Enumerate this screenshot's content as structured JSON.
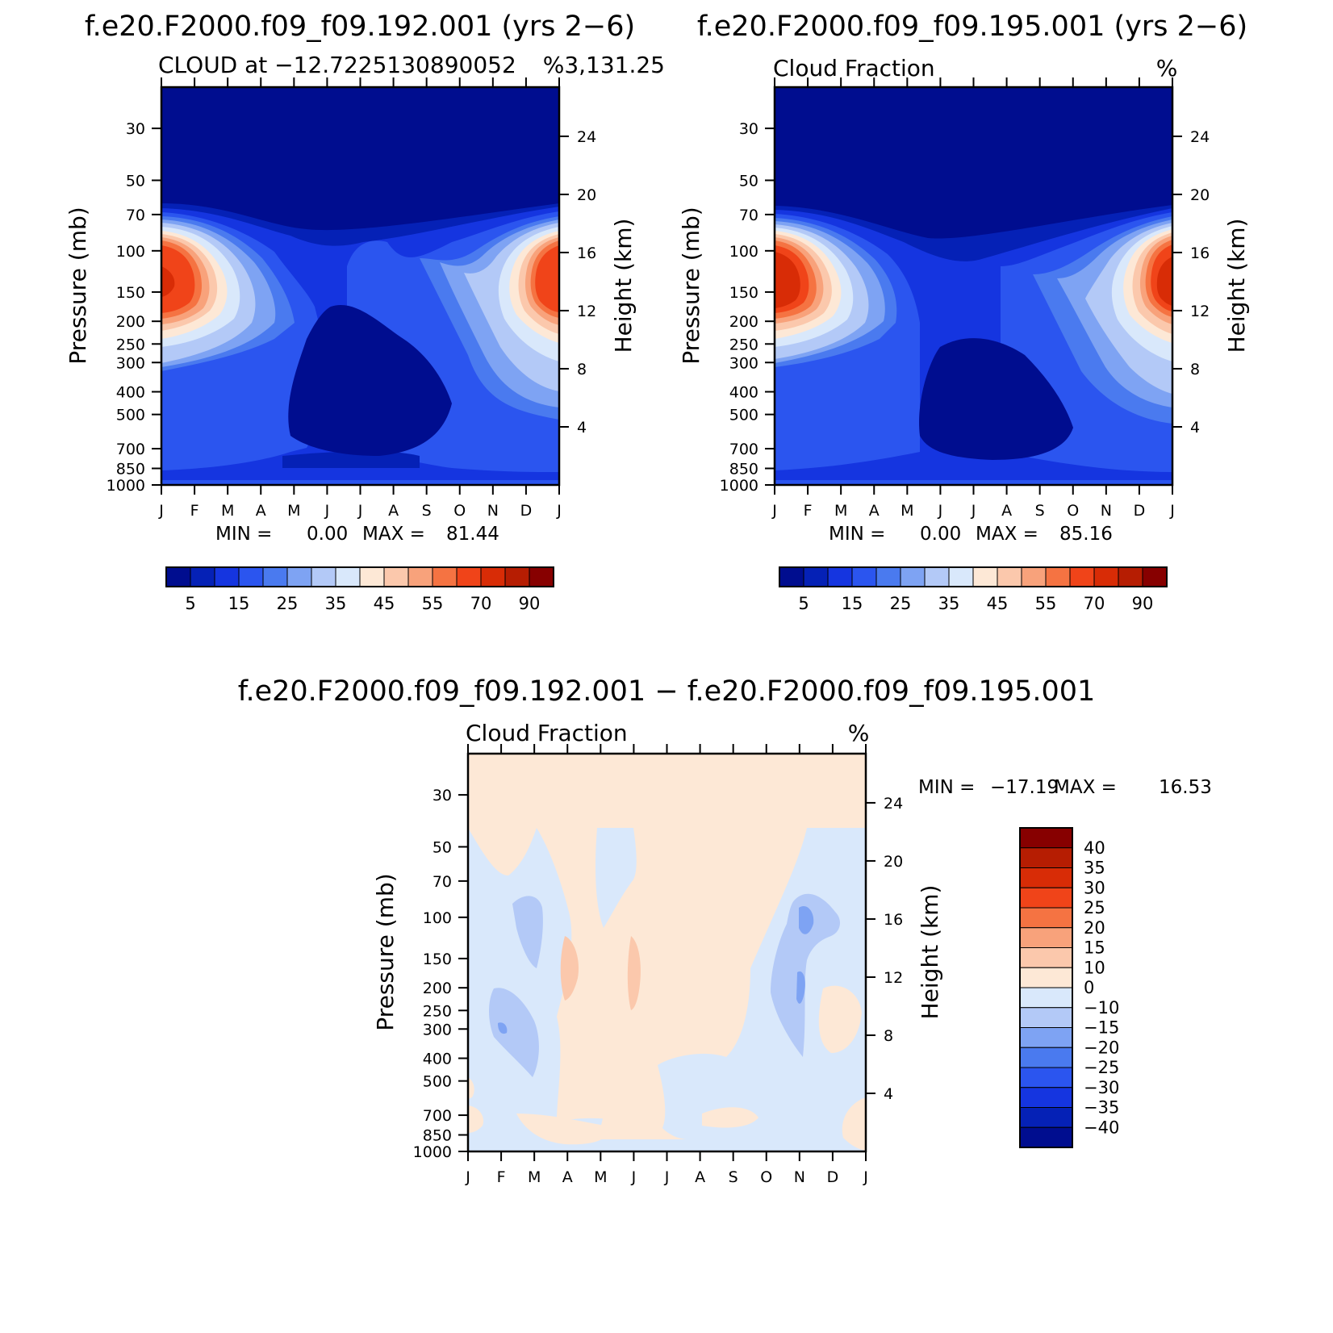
{
  "figure": {
    "background": "#ffffff"
  },
  "chart_data": [
    {
      "id": "p1",
      "type": "heatmap",
      "title": "f.e20.F2000.f09_f09.192.001 (yrs 2−6)",
      "subtitle_left": "CLOUD at −12.7225130890052",
      "subtitle_right": "%",
      "subtitle_tail": "3,131.25",
      "ylabel": "Pressure (mb)",
      "ylabel_right": "Height (km)",
      "x_ticks": [
        "J",
        "F",
        "M",
        "A",
        "M",
        "J",
        "J",
        "A",
        "S",
        "O",
        "N",
        "D",
        "J"
      ],
      "y_ticks": [
        "30",
        "50",
        "70",
        "100",
        "150",
        "200",
        "250",
        "300",
        "400",
        "500",
        "700",
        "850",
        "1000"
      ],
      "y_ticks_right": [
        "24",
        "20",
        "16",
        "12",
        "8",
        "4"
      ],
      "stats": {
        "min_label": "MIN =",
        "min_value": "0.00",
        "max_label": "MAX =",
        "max_value": "81.44"
      },
      "units": "%",
      "colorbar_labels": [
        "5",
        "15",
        "25",
        "35",
        "45",
        "55",
        "70",
        "90"
      ],
      "peak_value": 81.44,
      "minimum_value": 0.0
    },
    {
      "id": "p2",
      "type": "heatmap",
      "title": "f.e20.F2000.f09_f09.195.001 (yrs 2−6)",
      "subtitle_left": "Cloud Fraction",
      "subtitle_right": "%",
      "ylabel": "Pressure (mb)",
      "ylabel_right": "Height (km)",
      "x_ticks": [
        "J",
        "F",
        "M",
        "A",
        "M",
        "J",
        "J",
        "A",
        "S",
        "O",
        "N",
        "D",
        "J"
      ],
      "y_ticks": [
        "30",
        "50",
        "70",
        "100",
        "150",
        "200",
        "250",
        "300",
        "400",
        "500",
        "700",
        "850",
        "1000"
      ],
      "y_ticks_right": [
        "24",
        "20",
        "16",
        "12",
        "8",
        "4"
      ],
      "stats": {
        "min_label": "MIN =",
        "min_value": "0.00",
        "max_label": "MAX =",
        "max_value": "85.16"
      },
      "units": "%",
      "colorbar_labels": [
        "5",
        "15",
        "25",
        "35",
        "45",
        "55",
        "70",
        "90"
      ],
      "peak_value": 85.16,
      "minimum_value": 0.0
    },
    {
      "id": "p3",
      "type": "heatmap",
      "title": "f.e20.F2000.f09_f09.192.001 − f.e20.F2000.f09_f09.195.001",
      "subtitle_left": "Cloud Fraction",
      "subtitle_right": "%",
      "ylabel": "Pressure (mb)",
      "ylabel_right": "Height (km)",
      "x_ticks": [
        "J",
        "F",
        "M",
        "A",
        "M",
        "J",
        "J",
        "A",
        "S",
        "O",
        "N",
        "D",
        "J"
      ],
      "y_ticks": [
        "30",
        "50",
        "70",
        "100",
        "150",
        "200",
        "250",
        "300",
        "400",
        "500",
        "700",
        "850",
        "1000"
      ],
      "y_ticks_right": [
        "24",
        "20",
        "16",
        "12",
        "8",
        "4"
      ],
      "stats": {
        "min_label": "MIN =",
        "min_value": "−17.19",
        "max_label": "MAX =",
        "max_value": "16.53"
      },
      "units": "%",
      "colorbar_labels": [
        "40",
        "35",
        "30",
        "25",
        "20",
        "15",
        "10",
        "0",
        "−10",
        "−15",
        "−20",
        "−25",
        "−30",
        "−35",
        "−40"
      ],
      "max_value": 16.53,
      "min_value": -17.19
    }
  ],
  "colors": {
    "seq_palette": [
      "#000d8f",
      "#0521b6",
      "#1535e0",
      "#2b55ef",
      "#4a7aef",
      "#7ea3f3",
      "#b3c9f7",
      "#d9e8fb",
      "#fde8d6",
      "#fbc8ac",
      "#f8a27b",
      "#f57342",
      "#f04419",
      "#d82c06",
      "#b61d02",
      "#870000"
    ],
    "diff_palette": [
      "#870000",
      "#b61d02",
      "#d82c06",
      "#f04419",
      "#f57342",
      "#f8a27b",
      "#fbc8ac",
      "#fde8d6",
      "#d9e8fb",
      "#b3c9f7",
      "#7ea3f3",
      "#4a7aef",
      "#2b55ef",
      "#1535e0",
      "#0521b6",
      "#000d8f"
    ]
  }
}
